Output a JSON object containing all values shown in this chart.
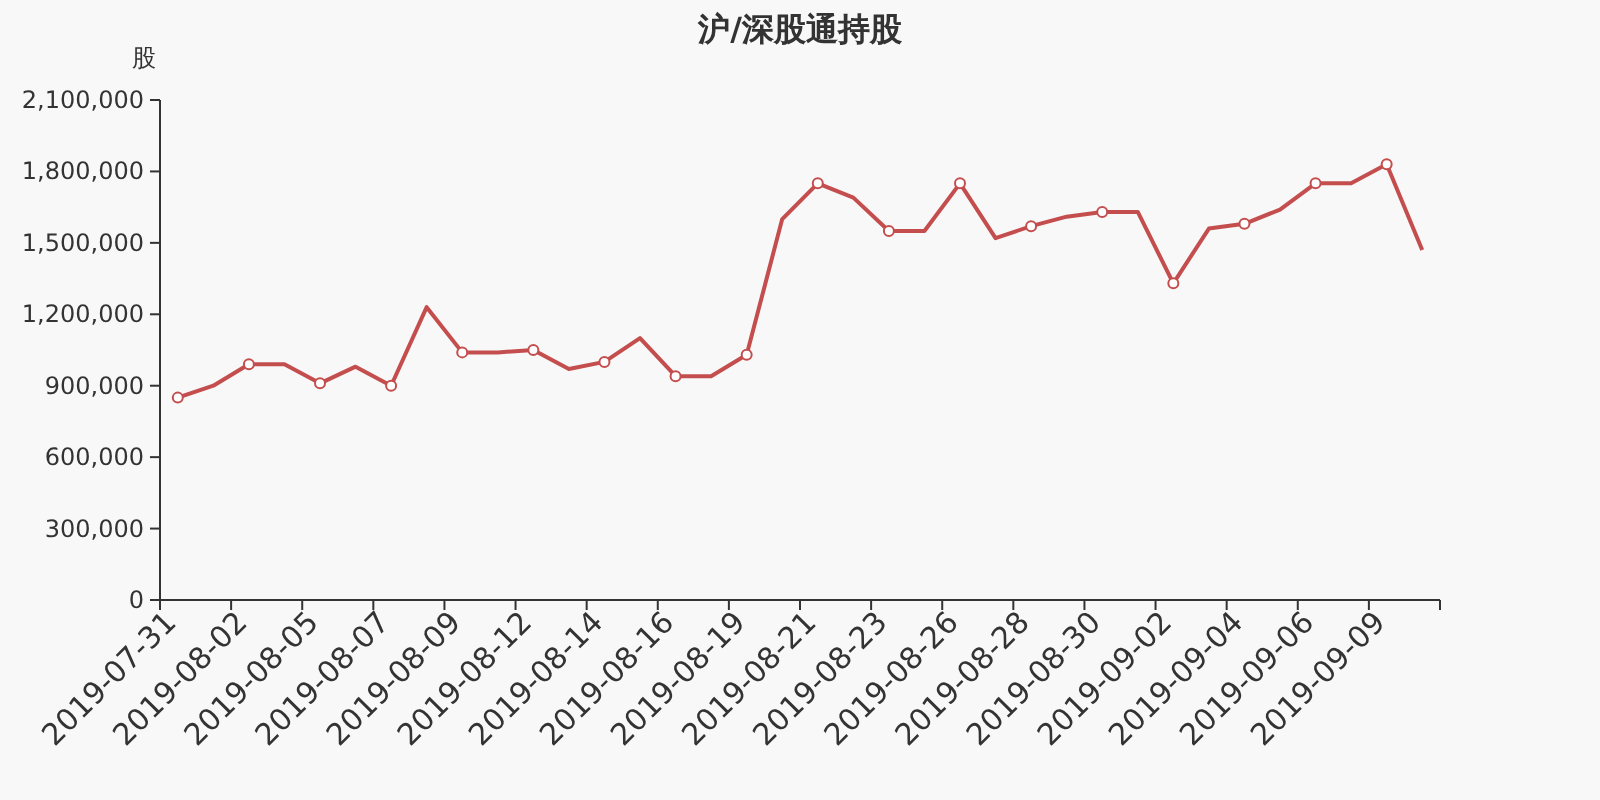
{
  "chart_data": {
    "type": "line",
    "title": "沪/深股通持股",
    "ylabel": "股",
    "categories": [
      "2019-07-31",
      null,
      "2019-08-02",
      null,
      "2019-08-05",
      null,
      "2019-08-07",
      null,
      "2019-08-09",
      null,
      "2019-08-12",
      null,
      "2019-08-14",
      null,
      "2019-08-16",
      null,
      "2019-08-19",
      null,
      "2019-08-21",
      null,
      "2019-08-23",
      null,
      "2019-08-26",
      null,
      "2019-08-28",
      null,
      "2019-08-30",
      null,
      "2019-09-02",
      null,
      "2019-09-04",
      null,
      "2019-09-06",
      null,
      "2019-09-09",
      null
    ],
    "series": [
      {
        "color": "#c44e4e",
        "values": [
          850000,
          900000,
          990000,
          990000,
          910000,
          980000,
          900000,
          1230000,
          1040000,
          1040000,
          1050000,
          970000,
          1000000,
          1100000,
          940000,
          940000,
          1030000,
          1600000,
          1750000,
          1690000,
          1550000,
          1550000,
          1750000,
          1520000,
          1570000,
          1610000,
          1630000,
          1630000,
          1330000,
          1560000,
          1580000,
          1640000,
          1750000,
          1750000,
          1830000,
          1470000
        ]
      }
    ],
    "ylim": [
      0,
      2100000
    ],
    "yticks": [
      {
        "value": 0,
        "label": "0"
      },
      {
        "value": 300000,
        "label": "300,000"
      },
      {
        "value": 600000,
        "label": "600,000"
      },
      {
        "value": 900000,
        "label": "900,000"
      },
      {
        "value": 1200000,
        "label": "1,200,000"
      },
      {
        "value": 1500000,
        "label": "1,500,000"
      },
      {
        "value": 1800000,
        "label": "1,800,000"
      },
      {
        "value": 2100000,
        "label": "2,100,000"
      }
    ],
    "grid": false,
    "marker": "circle",
    "line_style": "solid"
  }
}
